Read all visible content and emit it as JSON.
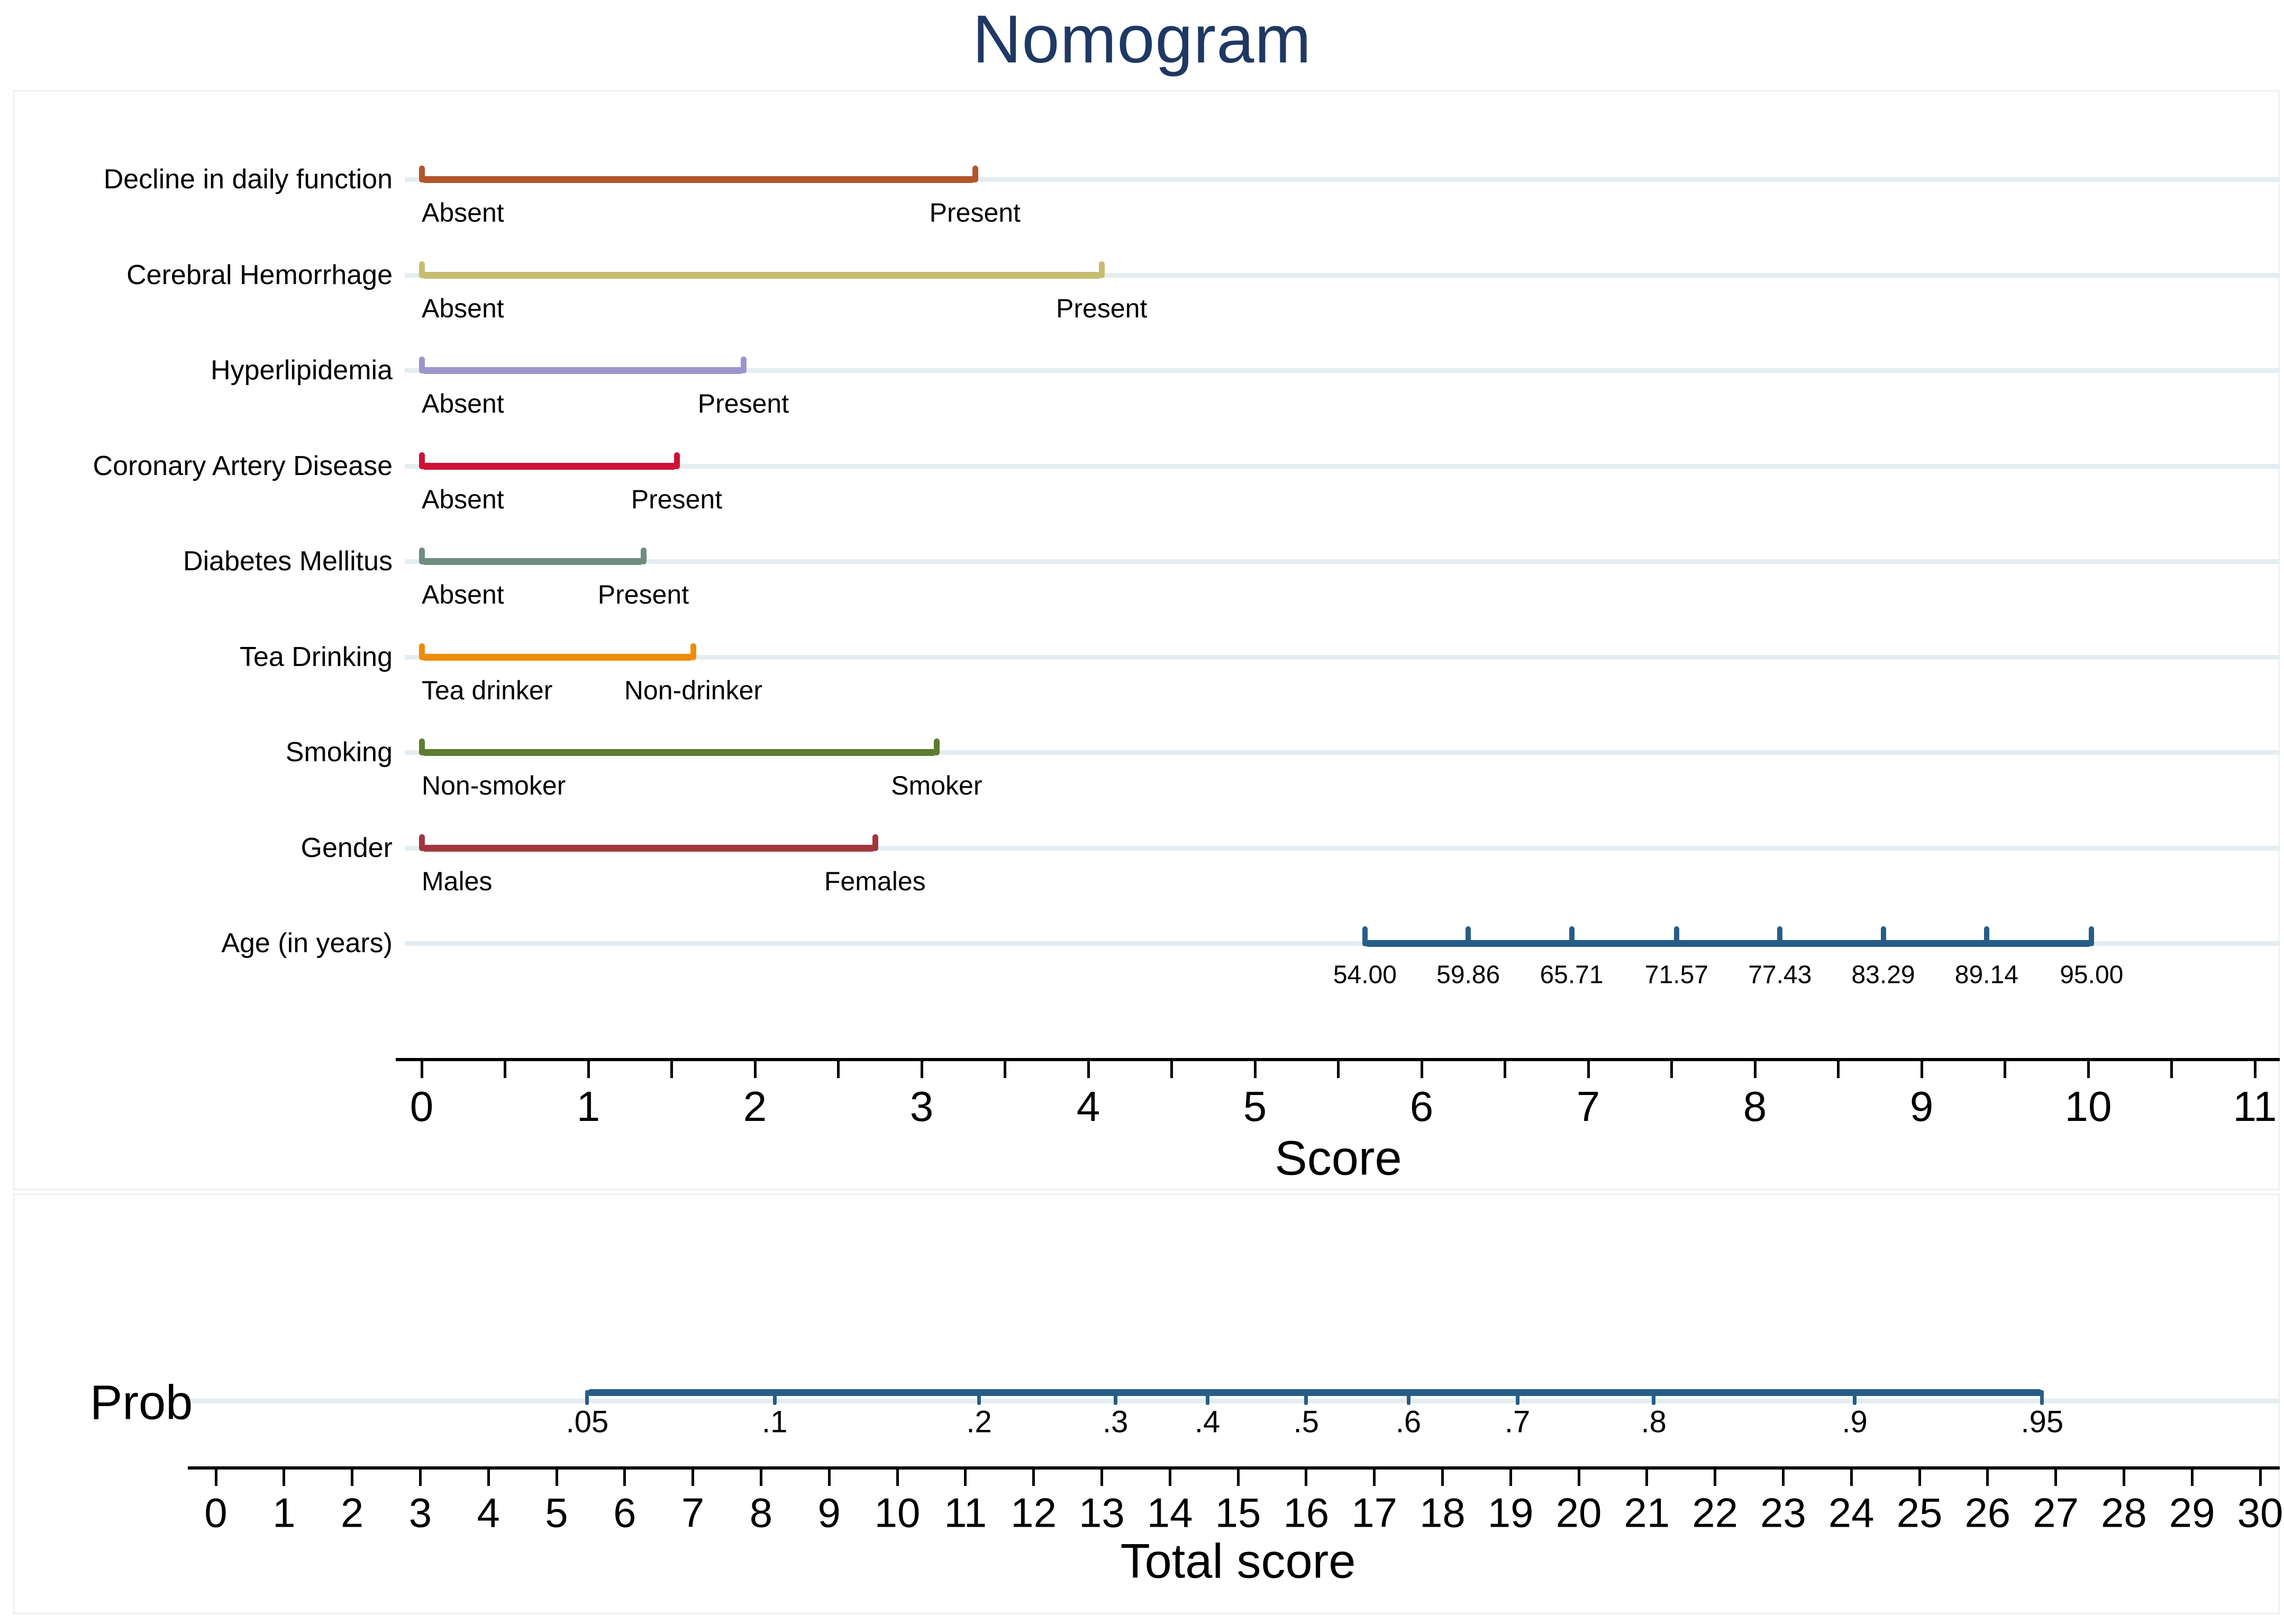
{
  "chart_data": {
    "type": "nomogram",
    "title": "Nomogram",
    "colors": {
      "title": "#1f3864",
      "axis": "#000000",
      "row_guide": "#e4edf1",
      "panel_border": "#edf2f5",
      "navy": "#265d87"
    },
    "score_axis": {
      "label": "Score",
      "min": 0,
      "max": 11,
      "major_tick_step": 1,
      "minor_tick_step": 0.5,
      "tick_labels": [
        "0",
        "1",
        "2",
        "3",
        "4",
        "5",
        "6",
        "7",
        "8",
        "9",
        "10",
        "11"
      ]
    },
    "predictors": [
      {
        "name": "Decline in daily function",
        "color": "#b2562b",
        "levels": [
          {
            "label": "Absent",
            "score": 0
          },
          {
            "label": "Present",
            "score": 3.32
          }
        ]
      },
      {
        "name": "Cerebral Hemorrhage",
        "color": "#c6bd72",
        "levels": [
          {
            "label": "Absent",
            "score": 0
          },
          {
            "label": "Present",
            "score": 4.08
          }
        ]
      },
      {
        "name": "Hyperlipidemia",
        "color": "#9c95cc",
        "levels": [
          {
            "label": "Absent",
            "score": 0
          },
          {
            "label": "Present",
            "score": 1.93
          }
        ]
      },
      {
        "name": "Coronary Artery Disease",
        "color": "#cf1037",
        "levels": [
          {
            "label": "Absent",
            "score": 0
          },
          {
            "label": "Present",
            "score": 1.53
          }
        ]
      },
      {
        "name": "Diabetes Mellitus",
        "color": "#6f8d7f",
        "levels": [
          {
            "label": "Absent",
            "score": 0
          },
          {
            "label": "Present",
            "score": 1.33
          }
        ]
      },
      {
        "name": "Tea Drinking",
        "color": "#ef8c0b",
        "levels": [
          {
            "label": "Tea drinker",
            "score": 0
          },
          {
            "label": "Non-drinker",
            "score": 1.63
          }
        ]
      },
      {
        "name": "Smoking",
        "color": "#5d7d2f",
        "levels": [
          {
            "label": "Non-smoker",
            "score": 0
          },
          {
            "label": "Smoker",
            "score": 3.09
          }
        ]
      },
      {
        "name": "Gender",
        "color": "#a0383e",
        "levels": [
          {
            "label": "Males",
            "score": 0
          },
          {
            "label": "Females",
            "score": 2.72
          }
        ]
      }
    ],
    "age_predictor": {
      "name": "Age (in years)",
      "color": "#265d87",
      "ticks": [
        {
          "label": "54.00",
          "score": 5.66
        },
        {
          "label": "59.86",
          "score": 6.28
        },
        {
          "label": "65.71",
          "score": 6.9
        },
        {
          "label": "71.57",
          "score": 7.53
        },
        {
          "label": "77.43",
          "score": 8.15
        },
        {
          "label": "83.29",
          "score": 8.77
        },
        {
          "label": "89.14",
          "score": 9.39
        },
        {
          "label": "95.00",
          "score": 10.02
        }
      ]
    },
    "probability_axis": {
      "label": "Prob",
      "color": "#265d87",
      "ticks": [
        {
          "label": ".05",
          "total_score": 5.45
        },
        {
          "label": ".1",
          "total_score": 8.2
        },
        {
          "label": ".2",
          "total_score": 11.2
        },
        {
          "label": ".3",
          "total_score": 13.2
        },
        {
          "label": ".4",
          "total_score": 14.55
        },
        {
          "label": ".5",
          "total_score": 16.0
        },
        {
          "label": ".6",
          "total_score": 17.5
        },
        {
          "label": ".7",
          "total_score": 19.1
        },
        {
          "label": ".8",
          "total_score": 21.1
        },
        {
          "label": ".9",
          "total_score": 24.05
        },
        {
          "label": ".95",
          "total_score": 26.8
        }
      ]
    },
    "total_score_axis": {
      "label": "Total score",
      "min": 0,
      "max": 30,
      "tick_step": 1,
      "tick_labels": [
        "0",
        "1",
        "2",
        "3",
        "4",
        "5",
        "6",
        "7",
        "8",
        "9",
        "10",
        "11",
        "12",
        "13",
        "14",
        "15",
        "16",
        "17",
        "18",
        "19",
        "20",
        "21",
        "22",
        "23",
        "24",
        "25",
        "26",
        "27",
        "28",
        "29",
        "30"
      ]
    }
  }
}
